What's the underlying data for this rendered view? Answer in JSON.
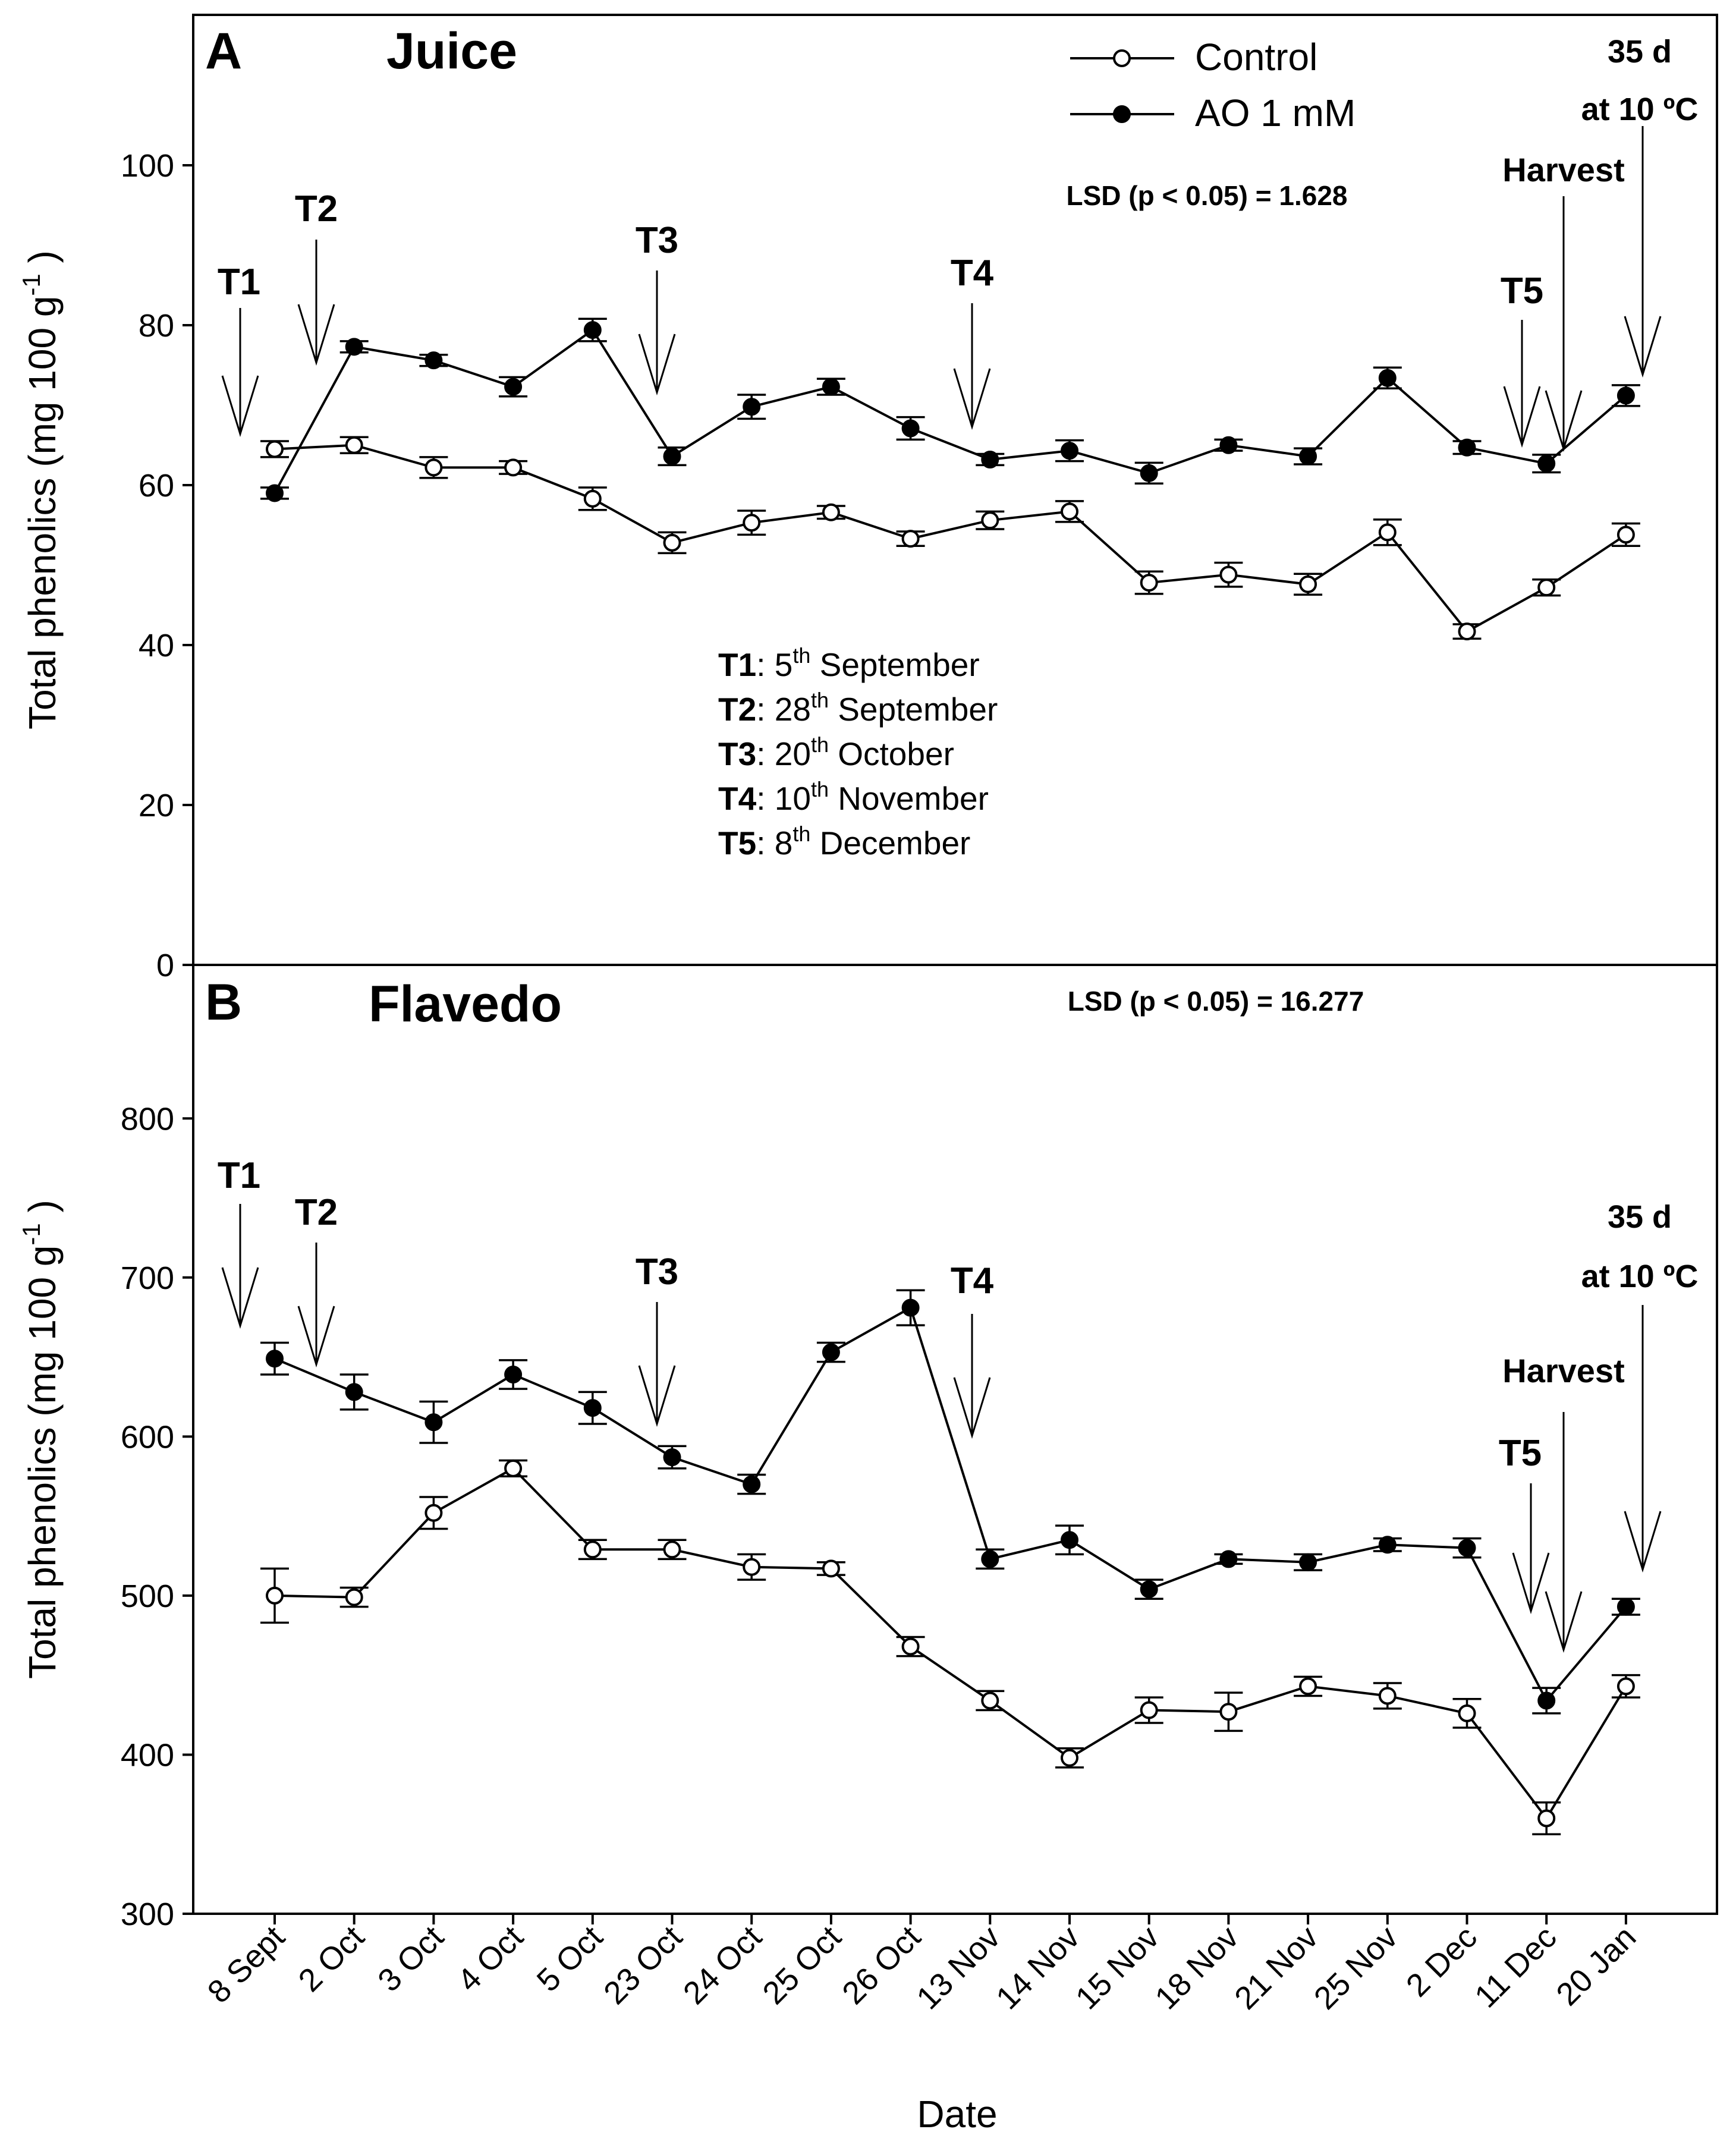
{
  "chart_data": [
    {
      "type": "line",
      "panel_letter": "A",
      "title": "Juice",
      "ylabel": "Total phenolics (mg 100 g",
      "ylabel_sup": "-1",
      "ylabel_close": " )",
      "ylim": [
        0,
        118
      ],
      "yticks": [
        0,
        20,
        40,
        60,
        80,
        100
      ],
      "categories": [
        "8 Sept",
        "2 Oct",
        "3 Oct",
        "4 Oct",
        "5 Oct",
        "23 Oct",
        "24 Oct",
        "25 Oct",
        "26 Oct",
        "13 Nov",
        "14 Nov",
        "15 Nov",
        "18 Nov",
        "21 Nov",
        "25 Nov",
        "2 Dec",
        "11 Dec",
        "20 Jan"
      ],
      "series": [
        {
          "name": "Control",
          "marker": "open",
          "values": [
            64.5,
            65.0,
            62.2,
            62.2,
            58.3,
            52.8,
            55.3,
            56.6,
            53.3,
            55.6,
            56.7,
            47.8,
            48.8,
            47.6,
            54.1,
            41.7,
            47.2,
            53.8
          ],
          "errors": [
            1.0,
            1.0,
            1.3,
            0.8,
            1.4,
            1.3,
            1.5,
            0.8,
            0.9,
            1.1,
            1.3,
            1.4,
            1.5,
            1.3,
            1.6,
            0.9,
            1.0,
            1.4
          ]
        },
        {
          "name": "AO 1 mM",
          "marker": "filled",
          "values": [
            59.0,
            77.3,
            75.6,
            72.3,
            79.4,
            63.6,
            69.8,
            72.3,
            67.1,
            63.2,
            64.3,
            61.5,
            65.0,
            63.6,
            73.4,
            64.7,
            62.7,
            71.2
          ],
          "errors": [
            0.7,
            0.7,
            0.7,
            1.2,
            1.4,
            1.1,
            1.5,
            1.0,
            1.4,
            0.7,
            1.3,
            1.3,
            0.7,
            1.0,
            1.3,
            0.8,
            1.1,
            1.3
          ]
        }
      ],
      "legend": {
        "placement": "top-center",
        "entries": [
          "Control",
          "AO 1 mM"
        ]
      },
      "lsd": "LSD (p < 0.05) = 1.628",
      "annotations": [
        {
          "label": "T1",
          "date": "5th September"
        },
        {
          "label": "T2",
          "date": "28th September"
        },
        {
          "label": "T3",
          "date": "20th October"
        },
        {
          "label": "T4",
          "date": "10th November"
        },
        {
          "label": "T5",
          "date": "8th December"
        },
        {
          "label": "Harvest"
        },
        {
          "label": "35 d"
        },
        {
          "label": "at 10 ºC"
        }
      ],
      "treatment_legend": [
        {
          "label": "T1",
          "sep": ": ",
          "num": "5",
          "sup": "th",
          "month": " September"
        },
        {
          "label": "T2",
          "sep": ": ",
          "num": "28",
          "sup": "th",
          "month": " September"
        },
        {
          "label": "T3",
          "sep": ": ",
          "num": "20",
          "sup": "th",
          "month": " October"
        },
        {
          "label": "T4",
          "sep": ": ",
          "num": "10",
          "sup": "th",
          "month": " November"
        },
        {
          "label": "T5",
          "sep": ": ",
          "num": "8",
          "sup": "th",
          "month": " December"
        }
      ]
    },
    {
      "type": "line",
      "panel_letter": "B",
      "title": "Flavedo",
      "xlabel": "Date",
      "ylabel": "Total phenolics (mg 100 g",
      "ylabel_sup": "-1",
      "ylabel_close": " )",
      "ylim": [
        300,
        880
      ],
      "yticks": [
        300,
        400,
        500,
        600,
        700,
        800
      ],
      "categories": [
        "8 Sept",
        "2 Oct",
        "3 Oct",
        "4 Oct",
        "5 Oct",
        "23 Oct",
        "24 Oct",
        "25 Oct",
        "26 Oct",
        "13 Nov",
        "14 Nov",
        "15 Nov",
        "18 Nov",
        "21 Nov",
        "25 Nov",
        "2 Dec",
        "11 Dec",
        "20 Jan"
      ],
      "series": [
        {
          "name": "Control",
          "marker": "open",
          "values": [
            500,
            499,
            552,
            580,
            529,
            529,
            518,
            517,
            468,
            434,
            398,
            428,
            427,
            443,
            437,
            426,
            360,
            443
          ],
          "errors": [
            17,
            6,
            10,
            5,
            6,
            6,
            8,
            4,
            6,
            6,
            6,
            8,
            12,
            6,
            8,
            9,
            10,
            7
          ]
        },
        {
          "name": "AO 1 mM",
          "marker": "filled",
          "values": [
            649,
            628,
            609,
            639,
            618,
            587,
            570,
            653,
            681,
            523,
            535,
            504,
            523,
            521,
            532,
            530,
            434,
            493
          ],
          "errors": [
            10,
            11,
            13,
            9,
            10,
            7,
            6,
            6,
            11,
            6,
            9,
            6,
            3,
            5,
            4,
            6,
            8,
            5
          ]
        }
      ],
      "lsd": "LSD (p < 0.05) = 16.277",
      "annotations": [
        {
          "label": "T1"
        },
        {
          "label": "T2"
        },
        {
          "label": "T3"
        },
        {
          "label": "T4"
        },
        {
          "label": "T5"
        },
        {
          "label": "Harvest"
        },
        {
          "label": "35 d"
        },
        {
          "label": "at 10 ºC"
        }
      ]
    }
  ]
}
